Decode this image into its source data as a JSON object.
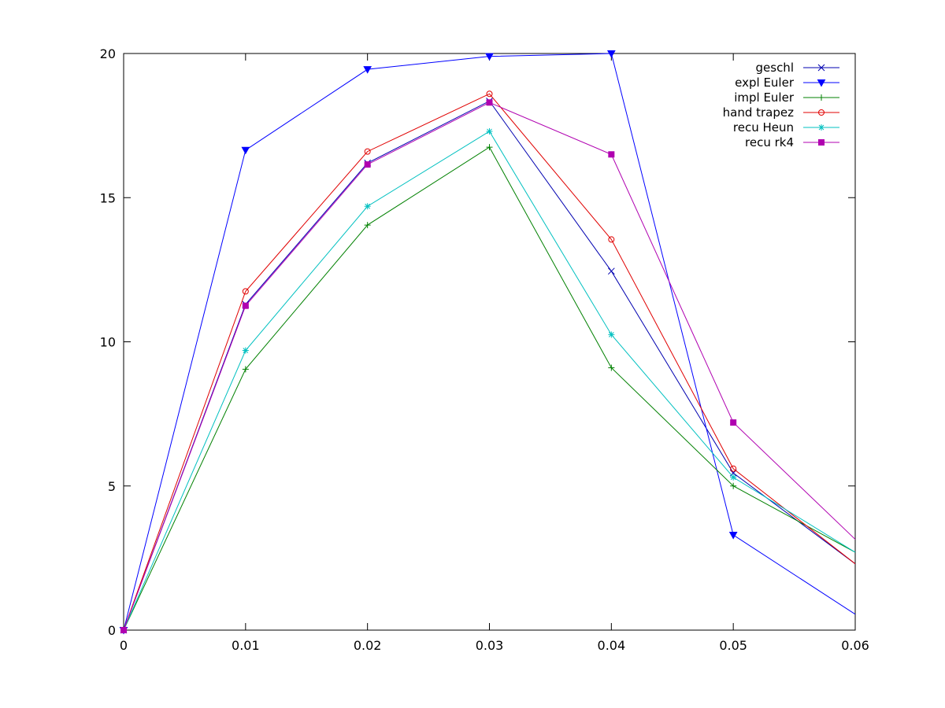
{
  "chart_data": {
    "type": "line",
    "title": "",
    "xlabel": "",
    "ylabel": "",
    "xlim": [
      0,
      0.06
    ],
    "ylim": [
      0,
      20
    ],
    "x_ticks": [
      0,
      0.01,
      0.02,
      0.03,
      0.04,
      0.05,
      0.06
    ],
    "x_tick_labels": [
      "0",
      "0.01",
      "0.02",
      "0.03",
      "0.04",
      "0.05",
      "0.06"
    ],
    "y_ticks": [
      0,
      5,
      10,
      15,
      20
    ],
    "y_tick_labels": [
      "0",
      "5",
      "10",
      "15",
      "20"
    ],
    "grid": false,
    "legend_position": "top-right",
    "x": [
      0,
      0.01,
      0.02,
      0.03,
      0.04,
      0.05,
      0.06
    ],
    "series": [
      {
        "name": "geschl",
        "color": "#0000b0",
        "marker": "x",
        "values": [
          0,
          11.3,
          16.2,
          18.35,
          12.45,
          5.45,
          2.3
        ]
      },
      {
        "name": "expl Euler",
        "color": "#0000ff",
        "marker": "triangle-down",
        "values": [
          0,
          16.65,
          19.45,
          19.9,
          20.0,
          3.3,
          0.55
        ]
      },
      {
        "name": "impl Euler",
        "color": "#008000",
        "marker": "plus",
        "values": [
          0,
          9.05,
          14.05,
          16.75,
          9.1,
          5.0,
          2.7
        ]
      },
      {
        "name": "hand trapez",
        "color": "#e00000",
        "marker": "circle-open",
        "values": [
          0,
          11.75,
          16.6,
          18.6,
          13.55,
          5.6,
          2.3
        ]
      },
      {
        "name": "recu Heun",
        "color": "#00c0c0",
        "marker": "asterisk",
        "values": [
          0,
          9.7,
          14.7,
          17.3,
          10.25,
          5.3,
          2.7
        ]
      },
      {
        "name": "recu rk4",
        "color": "#b000b0",
        "marker": "square-filled",
        "values": [
          0,
          11.25,
          16.15,
          18.3,
          16.5,
          7.2,
          3.15
        ]
      }
    ]
  }
}
